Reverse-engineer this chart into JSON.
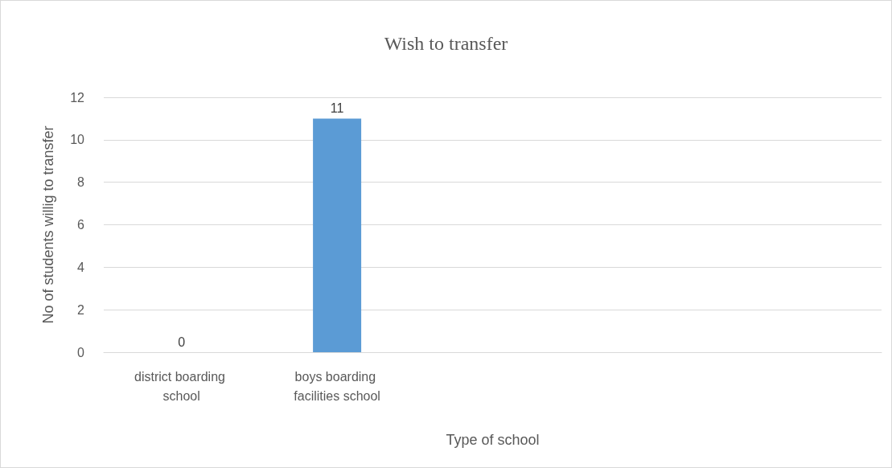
{
  "chart_data": {
    "type": "bar",
    "title": "Wish to transfer",
    "xlabel": "Type of school",
    "ylabel": "No of students willig to transfer",
    "categories": [
      "district boarding school",
      "boys boarding facilities school",
      null,
      null,
      null
    ],
    "values": [
      0,
      11,
      null,
      null,
      null
    ],
    "color": "#5b9bd5",
    "ylim": [
      0,
      12
    ],
    "yticks": [
      0,
      2,
      4,
      6,
      8,
      10,
      12
    ],
    "grid": "y",
    "data_labels": true
  }
}
